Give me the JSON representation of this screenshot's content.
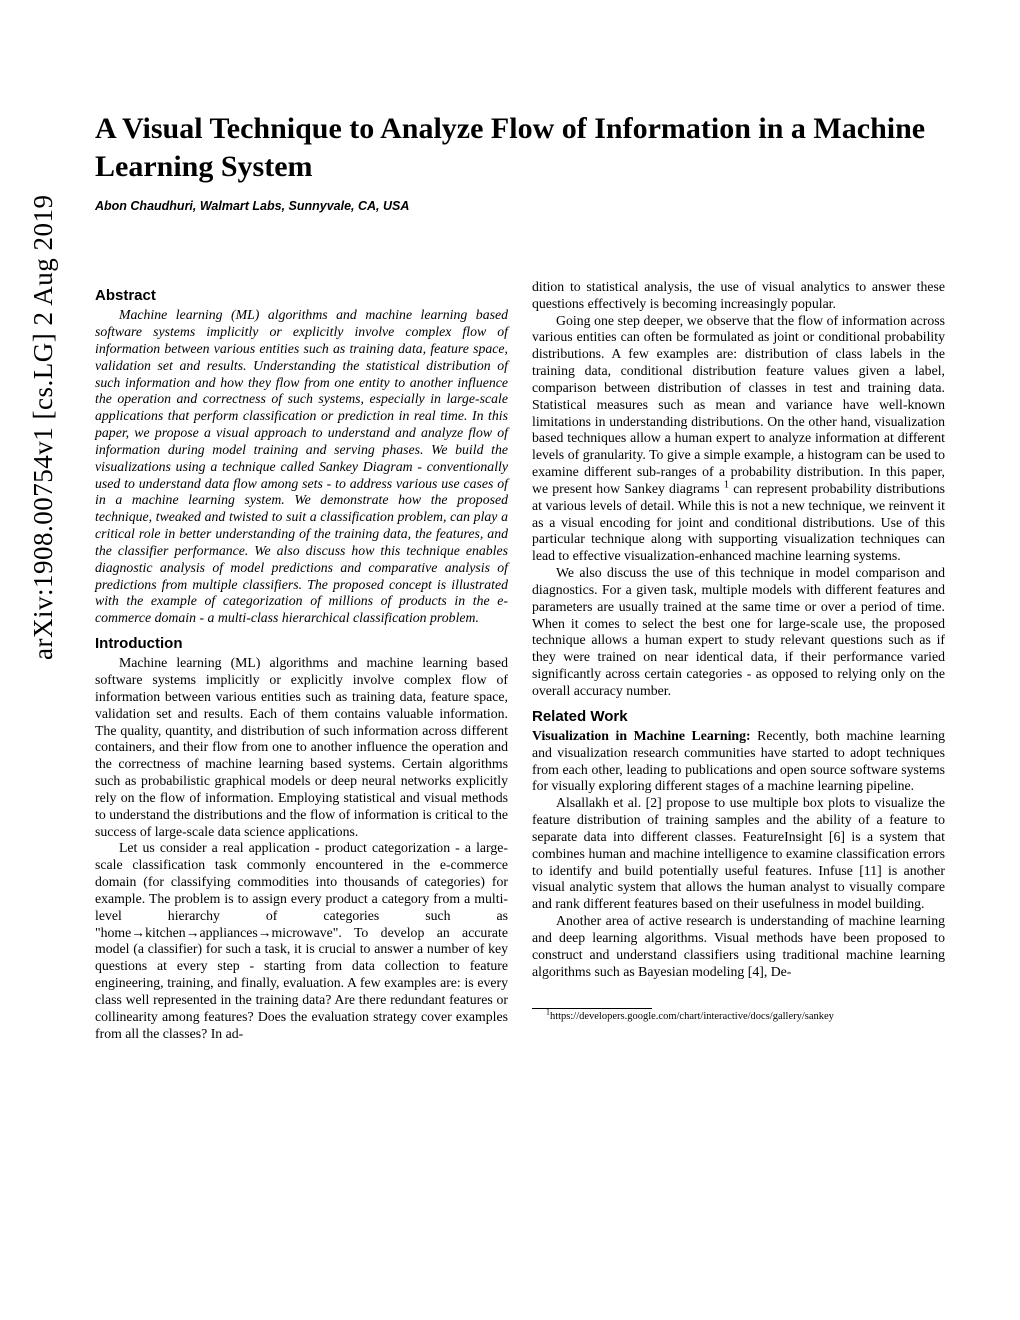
{
  "arxiv": "arXiv:1908.00754v1  [cs.LG]  2 Aug 2019",
  "title": "A Visual Technique to Analyze Flow of Information in a Machine Learning System",
  "author": "Abon Chaudhuri, Walmart Labs, Sunnyvale, CA, USA",
  "abstract_heading": "Abstract",
  "abstract": "Machine learning (ML) algorithms and machine learning based software systems implicitly or explicitly involve complex flow of information between various entities such as training data, feature space, validation set and results. Understanding the statistical distribution of such information and how they flow from one entity to another influence the operation and correctness of such systems, especially in large-scale applications that perform classification or prediction in real time. In this paper, we propose a visual approach to understand and analyze flow of information during model training and serving phases. We build the visualizations using a technique called Sankey Diagram - conventionally used to understand data flow among sets - to address various use cases of in a machine learning system. We demonstrate how the proposed technique, tweaked and twisted to suit a classification problem, can play a critical role in better understanding of the training data, the features, and the classifier performance. We also discuss how this technique enables diagnostic analysis of model predictions and comparative analysis of predictions from multiple classifiers. The proposed concept is illustrated with the example of categorization of millions of products in the e-commerce domain - a multi-class hierarchical classification problem.",
  "intro_heading": "Introduction",
  "intro_p1": "Machine learning (ML) algorithms and machine learning based software systems implicitly or explicitly involve complex flow of information between various entities such as training data, feature space, validation set and results. Each of them contains valuable information. The quality, quantity, and distribution of such information across different containers, and their flow from one to another influence the operation and the correctness of machine learning based systems. Certain algorithms such as probabilistic graphical models or deep neural networks explicitly rely on the flow of information. Employing statistical and visual methods to understand the distributions and the flow of information is critical to the success of large-scale data science applications.",
  "intro_p2": "Let us consider a real application - product categorization - a large-scale classification task commonly encountered in the e-commerce domain (for classifying commodities into thousands of categories) for example. The problem is to assign every product a category from a multi-level hierarchy of categories such as \"home→kitchen→appliances→microwave\". To develop an accurate model (a classifier) for such a task, it is crucial to answer a number of key questions at every step - starting from data collection to feature engineering, training, and finally, evaluation. A few examples are: is every class well represented in the training data? Are there redundant features or collinearity among features? Does the evaluation strategy cover examples from all the classes? In ad-",
  "col2_p1_a": "dition to statistical analysis, the use of visual analytics to answer these questions effectively is becoming increasingly popular.",
  "col2_p2_a": "Going one step deeper, we observe that the flow of information across various entities can often be formulated as joint or conditional probability distributions. A few examples are: distribution of class labels in the training data, conditional distribution feature values given a label, comparison between distribution of classes in test and training data. Statistical measures such as mean and variance have well-known limitations in understanding distributions. On the other hand, visualization based techniques allow a human expert to analyze information at different levels of granularity. To give a simple example, a histogram can be used to examine different sub-ranges of a probability distribution. In this paper, we present how Sankey diagrams ",
  "col2_p2_b": " can represent probability distributions at various levels of detail. While this is not a new technique, we reinvent it as a visual encoding for joint and conditional distributions. Use of this particular technique along with supporting visualization techniques can lead to effective visualization-enhanced machine learning systems.",
  "col2_p3": "We also discuss the use of this technique in model comparison and diagnostics. For a given task, multiple models with different features and parameters are usually trained at the same time or over a period of time. When it comes to select the best one for large-scale use, the proposed technique allows a human expert to study relevant questions such as if they were trained on near identical data, if their performance varied significantly across certain categories - as opposed to relying only on the overall accuracy number.",
  "related_heading": "Related Work",
  "related_runin": "Visualization in Machine Learning:",
  "related_p1": " Recently, both machine learning and visualization research communities have started to adopt techniques from each other, leading to publications and open source software systems for visually exploring different stages of a machine learning pipeline.",
  "related_p2": "Alsallakh et al. [2] propose to use multiple box plots to visualize the feature distribution of training samples and the ability of a feature to separate data into different classes. FeatureInsight [6] is a system that combines human and machine intelligence to examine classification errors to identify and build potentially useful features. Infuse [11] is another visual analytic system that allows the human analyst to visually compare and rank different features based on their usefulness in model building.",
  "related_p3": "Another area of active research is understanding of machine learning and deep learning algorithms. Visual methods have been proposed to construct and understand classifiers using traditional machine learning algorithms such as Bayesian modeling [4], De-",
  "footnote_marker": "1",
  "footnote": "https://developers.google.com/chart/interactive/docs/gallery/sankey"
}
